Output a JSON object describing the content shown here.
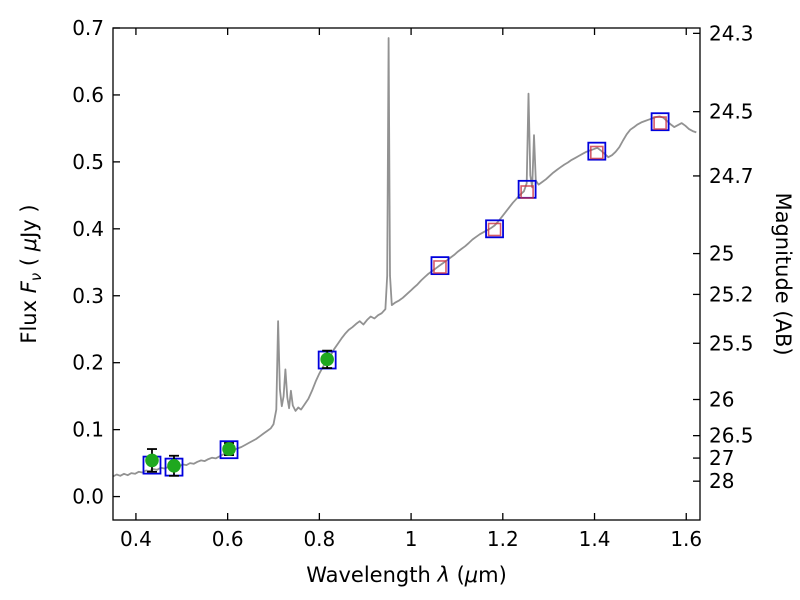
{
  "chart_data": {
    "type": "line",
    "title": "",
    "xlabel_parts": [
      {
        "t": "Wavelength  "
      },
      {
        "t": "λ",
        "i": true
      },
      {
        "t": " ("
      },
      {
        "t": "μ",
        "i": true
      },
      {
        "t": "m)"
      }
    ],
    "ylabel_left_parts": [
      {
        "t": "Flux  "
      },
      {
        "t": "F",
        "i": true
      },
      {
        "t": "ν",
        "i": true,
        "s": true
      },
      {
        "t": "  ( "
      },
      {
        "t": "μ",
        "i": true
      },
      {
        "t": "Jy )"
      }
    ],
    "ylabel_right": "Magnitude (AB)",
    "xlim": [
      0.35,
      1.63
    ],
    "ylim": [
      -0.035,
      0.7
    ],
    "x_ticks": {
      "values": [
        0.4,
        0.6,
        0.8,
        1.0,
        1.2,
        1.4,
        1.6
      ],
      "labels": [
        "0.4",
        "0.6",
        "0.8",
        "1",
        "1.2",
        "1.4",
        "1.6"
      ]
    },
    "y_ticks_left": {
      "values": [
        0.0,
        0.1,
        0.2,
        0.3,
        0.4,
        0.5,
        0.6,
        0.7
      ],
      "labels": [
        "0.0",
        "0.1",
        "0.2",
        "0.3",
        "0.4",
        "0.5",
        "0.6",
        "0.7"
      ]
    },
    "y_ticks_right": [
      {
        "label": "24.3",
        "flux": 0.692
      },
      {
        "label": "24.5",
        "flux": 0.575
      },
      {
        "label": "24.7",
        "flux": 0.479
      },
      {
        "label": "25",
        "flux": 0.363
      },
      {
        "label": "25.2",
        "flux": 0.302
      },
      {
        "label": "25.5",
        "flux": 0.229
      },
      {
        "label": "26",
        "flux": 0.145
      },
      {
        "label": "26.5",
        "flux": 0.091
      },
      {
        "label": "27",
        "flux": 0.0575
      },
      {
        "label": "28",
        "flux": 0.023
      }
    ],
    "grid": false,
    "legend": "none",
    "colors": {
      "spectrum": "#8c8c8c",
      "model_square": "#0000dd",
      "band_square": "#cc3344",
      "observed_point": "#1fa81f",
      "error_bar": "#000000",
      "axis": "#000000"
    },
    "series": [
      {
        "name": "model-spectrum",
        "kind": "line",
        "points": [
          [
            0.35,
            0.03
          ],
          [
            0.358,
            0.033
          ],
          [
            0.366,
            0.031
          ],
          [
            0.374,
            0.034
          ],
          [
            0.382,
            0.032
          ],
          [
            0.39,
            0.035
          ],
          [
            0.398,
            0.034
          ],
          [
            0.406,
            0.037
          ],
          [
            0.414,
            0.036
          ],
          [
            0.422,
            0.039
          ],
          [
            0.43,
            0.038
          ],
          [
            0.438,
            0.041
          ],
          [
            0.446,
            0.04
          ],
          [
            0.454,
            0.043
          ],
          [
            0.462,
            0.042
          ],
          [
            0.47,
            0.044
          ],
          [
            0.478,
            0.043
          ],
          [
            0.486,
            0.046
          ],
          [
            0.494,
            0.045
          ],
          [
            0.502,
            0.048
          ],
          [
            0.51,
            0.047
          ],
          [
            0.518,
            0.05
          ],
          [
            0.526,
            0.049
          ],
          [
            0.534,
            0.052
          ],
          [
            0.542,
            0.054
          ],
          [
            0.55,
            0.053
          ],
          [
            0.558,
            0.056
          ],
          [
            0.566,
            0.058
          ],
          [
            0.574,
            0.057
          ],
          [
            0.582,
            0.06
          ],
          [
            0.59,
            0.063
          ],
          [
            0.598,
            0.065
          ],
          [
            0.606,
            0.068
          ],
          [
            0.614,
            0.07
          ],
          [
            0.622,
            0.072
          ],
          [
            0.63,
            0.074
          ],
          [
            0.638,
            0.077
          ],
          [
            0.646,
            0.08
          ],
          [
            0.654,
            0.083
          ],
          [
            0.662,
            0.086
          ],
          [
            0.67,
            0.09
          ],
          [
            0.678,
            0.094
          ],
          [
            0.686,
            0.098
          ],
          [
            0.694,
            0.102
          ],
          [
            0.7,
            0.108
          ],
          [
            0.706,
            0.13
          ],
          [
            0.71,
            0.262
          ],
          [
            0.714,
            0.16
          ],
          [
            0.718,
            0.135
          ],
          [
            0.722,
            0.15
          ],
          [
            0.726,
            0.19
          ],
          [
            0.73,
            0.148
          ],
          [
            0.734,
            0.132
          ],
          [
            0.738,
            0.158
          ],
          [
            0.742,
            0.136
          ],
          [
            0.748,
            0.128
          ],
          [
            0.754,
            0.133
          ],
          [
            0.76,
            0.13
          ],
          [
            0.768,
            0.138
          ],
          [
            0.776,
            0.146
          ],
          [
            0.784,
            0.158
          ],
          [
            0.792,
            0.172
          ],
          [
            0.8,
            0.184
          ],
          [
            0.808,
            0.194
          ],
          [
            0.816,
            0.203
          ],
          [
            0.824,
            0.21
          ],
          [
            0.832,
            0.22
          ],
          [
            0.84,
            0.228
          ],
          [
            0.848,
            0.236
          ],
          [
            0.856,
            0.243
          ],
          [
            0.864,
            0.249
          ],
          [
            0.872,
            0.253
          ],
          [
            0.88,
            0.258
          ],
          [
            0.888,
            0.262
          ],
          [
            0.896,
            0.257
          ],
          [
            0.904,
            0.264
          ],
          [
            0.912,
            0.269
          ],
          [
            0.92,
            0.266
          ],
          [
            0.928,
            0.271
          ],
          [
            0.936,
            0.274
          ],
          [
            0.944,
            0.28
          ],
          [
            0.948,
            0.33
          ],
          [
            0.951,
            0.685
          ],
          [
            0.954,
            0.33
          ],
          [
            0.958,
            0.286
          ],
          [
            0.966,
            0.29
          ],
          [
            0.974,
            0.293
          ],
          [
            0.982,
            0.297
          ],
          [
            0.99,
            0.302
          ],
          [
            0.998,
            0.307
          ],
          [
            1.006,
            0.312
          ],
          [
            1.014,
            0.317
          ],
          [
            1.022,
            0.323
          ],
          [
            1.03,
            0.328
          ],
          [
            1.038,
            0.333
          ],
          [
            1.046,
            0.337
          ],
          [
            1.054,
            0.341
          ],
          [
            1.062,
            0.345
          ],
          [
            1.07,
            0.349
          ],
          [
            1.078,
            0.353
          ],
          [
            1.086,
            0.357
          ],
          [
            1.094,
            0.361
          ],
          [
            1.102,
            0.366
          ],
          [
            1.11,
            0.37
          ],
          [
            1.118,
            0.374
          ],
          [
            1.126,
            0.379
          ],
          [
            1.134,
            0.384
          ],
          [
            1.142,
            0.388
          ],
          [
            1.15,
            0.392
          ],
          [
            1.158,
            0.395
          ],
          [
            1.166,
            0.398
          ],
          [
            1.174,
            0.401
          ],
          [
            1.182,
            0.405
          ],
          [
            1.19,
            0.411
          ],
          [
            1.198,
            0.418
          ],
          [
            1.206,
            0.425
          ],
          [
            1.214,
            0.432
          ],
          [
            1.222,
            0.439
          ],
          [
            1.23,
            0.445
          ],
          [
            1.238,
            0.451
          ],
          [
            1.246,
            0.456
          ],
          [
            1.252,
            0.468
          ],
          [
            1.256,
            0.602
          ],
          [
            1.26,
            0.48
          ],
          [
            1.264,
            0.462
          ],
          [
            1.268,
            0.54
          ],
          [
            1.272,
            0.472
          ],
          [
            1.278,
            0.466
          ],
          [
            1.286,
            0.47
          ],
          [
            1.294,
            0.474
          ],
          [
            1.302,
            0.479
          ],
          [
            1.31,
            0.484
          ],
          [
            1.318,
            0.488
          ],
          [
            1.326,
            0.492
          ],
          [
            1.334,
            0.496
          ],
          [
            1.342,
            0.499
          ],
          [
            1.35,
            0.503
          ],
          [
            1.358,
            0.506
          ],
          [
            1.366,
            0.509
          ],
          [
            1.374,
            0.512
          ],
          [
            1.382,
            0.515
          ],
          [
            1.39,
            0.517
          ],
          [
            1.398,
            0.519
          ],
          [
            1.406,
            0.521
          ],
          [
            1.414,
            0.517
          ],
          [
            1.422,
            0.512
          ],
          [
            1.43,
            0.507
          ],
          [
            1.438,
            0.51
          ],
          [
            1.446,
            0.515
          ],
          [
            1.454,
            0.522
          ],
          [
            1.462,
            0.532
          ],
          [
            1.47,
            0.541
          ],
          [
            1.478,
            0.548
          ],
          [
            1.486,
            0.552
          ],
          [
            1.494,
            0.556
          ],
          [
            1.502,
            0.559
          ],
          [
            1.51,
            0.561
          ],
          [
            1.518,
            0.563
          ],
          [
            1.526,
            0.565
          ],
          [
            1.534,
            0.567
          ],
          [
            1.542,
            0.568
          ],
          [
            1.55,
            0.566
          ],
          [
            1.558,
            0.561
          ],
          [
            1.566,
            0.556
          ],
          [
            1.574,
            0.552
          ],
          [
            1.582,
            0.555
          ],
          [
            1.59,
            0.558
          ],
          [
            1.598,
            0.554
          ],
          [
            1.606,
            0.549
          ],
          [
            1.614,
            0.546
          ],
          [
            1.622,
            0.544
          ]
        ]
      },
      {
        "name": "model-photometry-blue-squares",
        "kind": "open-square",
        "points": [
          [
            0.435,
            0.047
          ],
          [
            0.483,
            0.044
          ],
          [
            0.603,
            0.07
          ],
          [
            0.817,
            0.204
          ],
          [
            1.063,
            0.345
          ],
          [
            1.182,
            0.4
          ],
          [
            1.253,
            0.459
          ],
          [
            1.405,
            0.516
          ],
          [
            1.543,
            0.56
          ]
        ]
      },
      {
        "name": "band-flux-red-squares",
        "kind": "open-square-small",
        "points": [
          [
            1.063,
            0.343
          ],
          [
            1.182,
            0.399
          ],
          [
            1.253,
            0.455
          ],
          [
            1.405,
            0.514
          ],
          [
            1.543,
            0.558
          ]
        ]
      },
      {
        "name": "observed-photometry-green-circles",
        "kind": "filled-circle-errorbar",
        "points": [
          {
            "x": 0.435,
            "y": 0.054,
            "yerr": 0.017
          },
          {
            "x": 0.483,
            "y": 0.046,
            "yerr": 0.015
          },
          {
            "x": 0.603,
            "y": 0.071,
            "yerr": 0.009
          },
          {
            "x": 0.817,
            "y": 0.205,
            "yerr": 0.013
          }
        ]
      }
    ]
  }
}
